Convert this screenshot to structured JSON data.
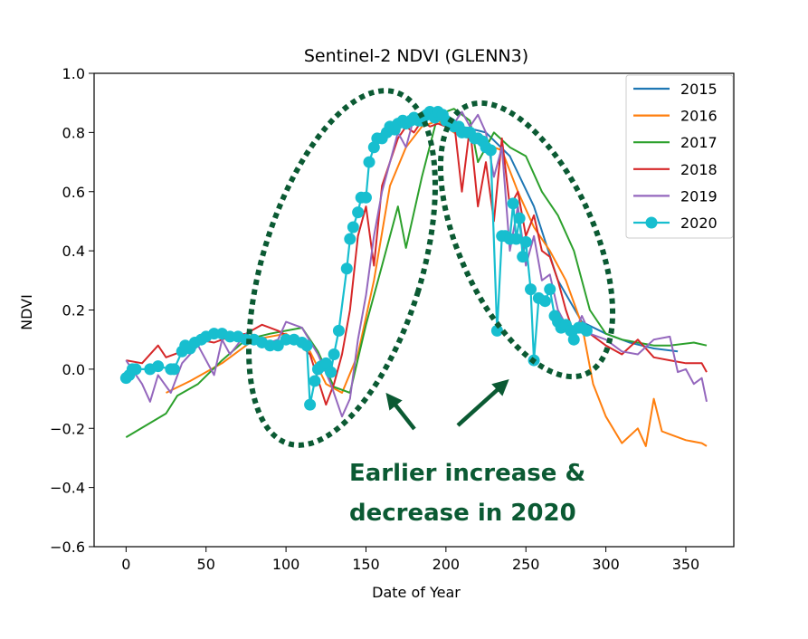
{
  "chart_data": {
    "type": "line",
    "title": "Sentinel-2 NDVI (GLENN3)",
    "xlabel": "Date of Year",
    "ylabel": "NDVI",
    "xlim": [
      -20,
      380
    ],
    "ylim": [
      -0.6,
      1.0
    ],
    "xticks": [
      0,
      50,
      100,
      150,
      200,
      250,
      300,
      350
    ],
    "yticks": [
      -0.6,
      -0.4,
      -0.2,
      0.0,
      0.2,
      0.4,
      0.6,
      0.8,
      1.0
    ],
    "xtick_labels": [
      "0",
      "50",
      "100",
      "150",
      "200",
      "250",
      "300",
      "350"
    ],
    "ytick_labels": [
      "−0.6",
      "−0.4",
      "−0.2",
      "0.0",
      "0.2",
      "0.4",
      "0.6",
      "0.8",
      "1.0"
    ],
    "legend_position": "top-right",
    "grid": false,
    "series": [
      {
        "name": "2015",
        "color": "#1f77b4",
        "marker": false,
        "x": [
          180,
          195,
          210,
          225,
          240,
          255,
          270,
          285,
          300,
          315,
          330,
          345
        ],
        "y": [
          0.84,
          0.85,
          0.82,
          0.8,
          0.72,
          0.55,
          0.3,
          0.16,
          0.12,
          0.09,
          0.07,
          0.06
        ]
      },
      {
        "name": "2016",
        "color": "#ff7f0e",
        "marker": false,
        "x": [
          25,
          40,
          60,
          80,
          100,
          115,
          125,
          135,
          145,
          155,
          165,
          175,
          185,
          195,
          205,
          215,
          225,
          235,
          245,
          255,
          265,
          275,
          285,
          292,
          300,
          310,
          320,
          325,
          330,
          335,
          340,
          350,
          360,
          363
        ],
        "y": [
          -0.08,
          -0.04,
          0.02,
          0.1,
          0.12,
          0.06,
          -0.05,
          -0.08,
          0.05,
          0.3,
          0.62,
          0.75,
          0.82,
          0.84,
          0.8,
          0.78,
          0.76,
          0.74,
          0.6,
          0.48,
          0.4,
          0.3,
          0.15,
          -0.05,
          -0.16,
          -0.25,
          -0.2,
          -0.26,
          -0.1,
          -0.21,
          -0.22,
          -0.24,
          -0.25,
          -0.26
        ]
      },
      {
        "name": "2017",
        "color": "#2ca02c",
        "marker": false,
        "x": [
          0,
          25,
          32,
          45,
          60,
          75,
          90,
          100,
          110,
          120,
          130,
          140,
          150,
          160,
          170,
          175,
          185,
          195,
          205,
          215,
          220,
          230,
          240,
          250,
          260,
          270,
          280,
          290,
          300,
          310,
          320,
          330,
          340,
          355,
          363
        ],
        "y": [
          -0.23,
          -0.15,
          -0.09,
          -0.05,
          0.03,
          0.1,
          0.12,
          0.13,
          0.14,
          0.06,
          -0.06,
          -0.08,
          0.15,
          0.35,
          0.55,
          0.41,
          0.65,
          0.86,
          0.88,
          0.84,
          0.7,
          0.8,
          0.75,
          0.72,
          0.6,
          0.52,
          0.4,
          0.2,
          0.12,
          0.1,
          0.09,
          0.08,
          0.08,
          0.09,
          0.08
        ]
      },
      {
        "name": "2018",
        "color": "#d62728",
        "marker": false,
        "x": [
          0,
          10,
          20,
          25,
          35,
          45,
          55,
          65,
          75,
          85,
          95,
          105,
          115,
          125,
          130,
          135,
          140,
          145,
          150,
          155,
          160,
          165,
          170,
          175,
          180,
          185,
          190,
          195,
          200,
          205,
          210,
          215,
          220,
          225,
          230,
          235,
          240,
          245,
          250,
          255,
          260,
          265,
          270,
          275,
          280,
          285,
          290,
          300,
          310,
          320,
          330,
          340,
          350,
          360,
          363
        ],
        "y": [
          0.03,
          0.02,
          0.08,
          0.04,
          0.06,
          0.1,
          0.09,
          0.11,
          0.12,
          0.15,
          0.13,
          0.1,
          0.05,
          -0.12,
          -0.05,
          0.05,
          0.2,
          0.45,
          0.55,
          0.35,
          0.62,
          0.7,
          0.78,
          0.82,
          0.8,
          0.84,
          0.82,
          0.83,
          0.82,
          0.84,
          0.6,
          0.82,
          0.55,
          0.7,
          0.5,
          0.78,
          0.55,
          0.6,
          0.45,
          0.52,
          0.4,
          0.38,
          0.3,
          0.2,
          0.12,
          0.15,
          0.12,
          0.08,
          0.05,
          0.1,
          0.04,
          0.03,
          0.02,
          0.02,
          -0.01
        ]
      },
      {
        "name": "2019",
        "color": "#9467bd",
        "marker": false,
        "x": [
          0,
          10,
          15,
          20,
          28,
          35,
          45,
          55,
          60,
          65,
          75,
          85,
          95,
          100,
          110,
          120,
          128,
          135,
          140,
          145,
          150,
          155,
          160,
          165,
          170,
          175,
          180,
          185,
          190,
          195,
          200,
          205,
          210,
          215,
          220,
          225,
          230,
          235,
          240,
          245,
          250,
          255,
          260,
          265,
          270,
          275,
          280,
          285,
          290,
          300,
          310,
          320,
          330,
          340,
          345,
          350,
          355,
          360,
          363
        ],
        "y": [
          0.03,
          -0.05,
          -0.11,
          -0.02,
          -0.08,
          0.02,
          0.08,
          -0.02,
          0.1,
          0.05,
          0.12,
          0.08,
          0.1,
          0.16,
          0.14,
          0.05,
          -0.05,
          -0.16,
          -0.1,
          0.1,
          0.25,
          0.45,
          0.6,
          0.7,
          0.8,
          0.75,
          0.85,
          0.83,
          0.88,
          0.84,
          0.85,
          0.83,
          0.87,
          0.82,
          0.86,
          0.8,
          0.65,
          0.75,
          0.4,
          0.55,
          0.35,
          0.45,
          0.3,
          0.32,
          0.2,
          0.15,
          0.12,
          0.18,
          0.12,
          0.1,
          0.06,
          0.05,
          0.1,
          0.11,
          -0.01,
          0.0,
          -0.05,
          -0.03,
          -0.11
        ]
      },
      {
        "name": "2020",
        "color": "#17becf",
        "marker": true,
        "x": [
          0,
          2,
          4,
          6,
          15,
          20,
          28,
          30,
          35,
          37,
          40,
          43,
          47,
          50,
          55,
          60,
          65,
          70,
          75,
          80,
          85,
          90,
          95,
          100,
          105,
          110,
          113,
          115,
          118,
          120,
          122,
          125,
          128,
          130,
          133,
          138,
          140,
          142,
          145,
          147,
          150,
          152,
          155,
          157,
          160,
          163,
          165,
          168,
          170,
          173,
          175,
          178,
          180,
          183,
          185,
          188,
          190,
          193,
          195,
          198,
          200,
          203,
          205,
          208,
          210,
          213,
          215,
          218,
          220,
          223,
          225,
          228,
          232,
          235,
          237,
          240,
          242,
          244,
          246,
          248,
          250,
          253,
          255,
          258,
          262,
          265,
          268,
          270,
          272,
          275,
          278,
          280,
          283,
          285,
          288
        ],
        "y": [
          -0.03,
          -0.02,
          0.0,
          0.0,
          0.0,
          0.01,
          0.0,
          0.0,
          0.06,
          0.08,
          0.07,
          0.09,
          0.1,
          0.11,
          0.12,
          0.12,
          0.11,
          0.11,
          0.1,
          0.1,
          0.09,
          0.08,
          0.08,
          0.1,
          0.1,
          0.09,
          0.08,
          -0.12,
          -0.04,
          0.0,
          0.01,
          0.02,
          -0.01,
          0.05,
          0.13,
          0.34,
          0.44,
          0.48,
          0.53,
          0.58,
          0.58,
          0.7,
          0.75,
          0.78,
          0.78,
          0.8,
          0.82,
          0.81,
          0.83,
          0.84,
          0.83,
          0.84,
          0.85,
          0.84,
          0.84,
          0.86,
          0.87,
          0.85,
          0.87,
          0.86,
          0.84,
          0.83,
          0.82,
          0.82,
          0.8,
          0.8,
          0.8,
          0.78,
          0.78,
          0.77,
          0.75,
          0.74,
          0.13,
          0.45,
          0.45,
          0.44,
          0.56,
          0.44,
          0.51,
          0.38,
          0.43,
          0.27,
          0.03,
          0.24,
          0.23,
          0.27,
          0.18,
          0.16,
          0.14,
          0.15,
          0.13,
          0.1,
          0.14,
          0.14,
          0.13
        ]
      }
    ],
    "annotations": {
      "text_line1": "Earlier increase &",
      "text_line2": "decrease in 2020",
      "text_color": "#0b5a33",
      "ellipse_color": "#0b5a33",
      "arrow_color": "#0b5a33"
    }
  }
}
